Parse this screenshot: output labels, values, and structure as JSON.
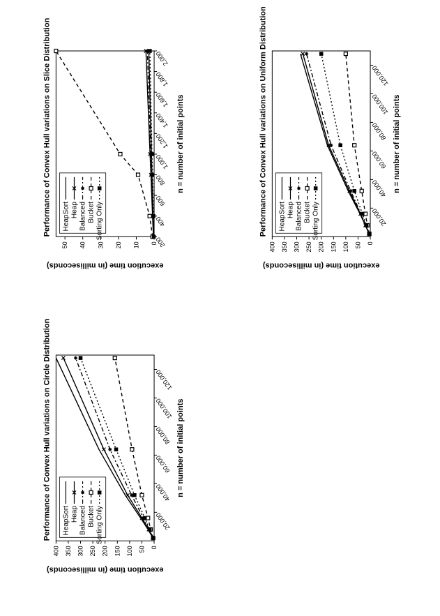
{
  "layout": {
    "panels": [
      "slice",
      "uniform",
      "circle"
    ],
    "grid": "2x2-rotated",
    "rotation_deg": -90
  },
  "legend": {
    "labels": [
      "HeapSort",
      "Heap",
      "Balanced",
      "Bucket",
      "Sorting Only"
    ],
    "markers": [
      "none",
      "x",
      "asterisk",
      "open-square",
      "filled-square"
    ],
    "dashes": [
      "solid",
      "solid",
      "dash-dot",
      "short-dash",
      "dotted"
    ],
    "font_size": 10
  },
  "common": {
    "ylabel": "execution time (in milliseconds)",
    "xlabel": "n = number of initial points",
    "label_fontsize": 11,
    "tick_fontsize": 9,
    "title_fontsize": 11,
    "line_width": 1.4,
    "marker_size": 5,
    "colors": {
      "line": "#000000",
      "grid": "#e0e0e0",
      "background": "#ffffff",
      "border": "#000000"
    }
  },
  "charts": {
    "slice": {
      "title": "Performance of Convex Hull variations on Slice Distribution",
      "xlim": [
        200,
        2000
      ],
      "xtick_step": 200,
      "ylim": [
        0,
        55
      ],
      "ytick_step": 10,
      "xticks": [
        200,
        400,
        600,
        800,
        1000,
        1200,
        1400,
        1600,
        1800,
        2000
      ],
      "xtick_labels": [
        "200",
        "400",
        "600",
        "800",
        "1,000",
        "1,200",
        "1,400",
        "1,600",
        "1,800",
        "2,000"
      ],
      "series": {
        "HeapSort": {
          "x": [
            200,
            400,
            800,
            1000,
            2000
          ],
          "y": [
            0.3,
            0.6,
            1.2,
            1.5,
            3.0
          ]
        },
        "Heap": {
          "x": [
            200,
            400,
            800,
            1000,
            2000
          ],
          "y": [
            0.4,
            0.9,
            1.8,
            2.3,
            4.6
          ]
        },
        "Balanced": {
          "x": [
            200,
            400,
            800,
            1000,
            2000
          ],
          "y": [
            0.3,
            0.7,
            1.5,
            1.9,
            3.8
          ]
        },
        "Bucket": {
          "x": [
            200,
            400,
            800,
            1000,
            2000
          ],
          "y": [
            0.9,
            2.5,
            9.0,
            19.0,
            55.0
          ]
        },
        "Sorting Only": {
          "x": [
            200,
            400,
            800,
            1000,
            2000
          ],
          "y": [
            0.2,
            0.4,
            0.9,
            1.2,
            2.4
          ]
        }
      }
    },
    "uniform": {
      "title": "Performance of Convex Hull variations on Uniform Distribution",
      "xlim": [
        0,
        130000
      ],
      "xtick_step": 20000,
      "ylim": [
        0,
        400
      ],
      "ytick_step": 50,
      "xticks": [
        20000,
        40000,
        60000,
        80000,
        100000,
        120000
      ],
      "xtick_labels": [
        "20,000",
        "40,000",
        "60,000",
        "80,000",
        "100,000",
        "120,000"
      ],
      "series": {
        "HeapSort": {
          "x": [
            2000,
            8000,
            16000,
            32000,
            64000,
            128000
          ],
          "y": [
            5,
            20,
            42,
            90,
            175,
            285
          ]
        },
        "Heap": {
          "x": [
            2000,
            8000,
            16000,
            32000,
            64000,
            128000
          ],
          "y": [
            5,
            20,
            40,
            85,
            170,
            275
          ]
        },
        "Balanced": {
          "x": [
            2000,
            8000,
            16000,
            32000,
            64000,
            128000
          ],
          "y": [
            5,
            18,
            38,
            80,
            160,
            260
          ]
        },
        "Bucket": {
          "x": [
            2000,
            8000,
            16000,
            32000,
            64000,
            128000
          ],
          "y": [
            4,
            12,
            20,
            35,
            65,
            100
          ]
        },
        "Sorting Only": {
          "x": [
            2000,
            8000,
            16000,
            32000,
            64000,
            128000
          ],
          "y": [
            5,
            16,
            32,
            65,
            122,
            200
          ]
        }
      }
    },
    "circle": {
      "title": "Performance of Convex Hull variations on Circle Distribution",
      "xlim": [
        0,
        130000
      ],
      "xtick_step": 20000,
      "ylim": [
        0,
        400
      ],
      "ytick_step": 50,
      "xticks": [
        20000,
        40000,
        60000,
        80000,
        100000,
        120000
      ],
      "xtick_labels": [
        "20,000",
        "40,000",
        "60,000",
        "80,000",
        "100,000",
        "120,000"
      ],
      "series": {
        "HeapSort": {
          "x": [
            2000,
            8000,
            16000,
            32000,
            64000,
            128000
          ],
          "y": [
            5,
            25,
            55,
            118,
            225,
            400
          ]
        },
        "Heap": {
          "x": [
            2000,
            8000,
            16000,
            32000,
            64000,
            128000
          ],
          "y": [
            5,
            22,
            50,
            108,
            205,
            370
          ]
        },
        "Balanced": {
          "x": [
            2000,
            8000,
            16000,
            32000,
            64000,
            128000
          ],
          "y": [
            5,
            20,
            44,
            92,
            180,
            320
          ]
        },
        "Bucket": {
          "x": [
            2000,
            8000,
            16000,
            32000,
            64000,
            128000
          ],
          "y": [
            4,
            14,
            25,
            50,
            90,
            160
          ]
        },
        "Sorting Only": {
          "x": [
            2000,
            8000,
            16000,
            32000,
            64000,
            128000
          ],
          "y": [
            5,
            18,
            38,
            80,
            155,
            300
          ]
        }
      }
    }
  }
}
